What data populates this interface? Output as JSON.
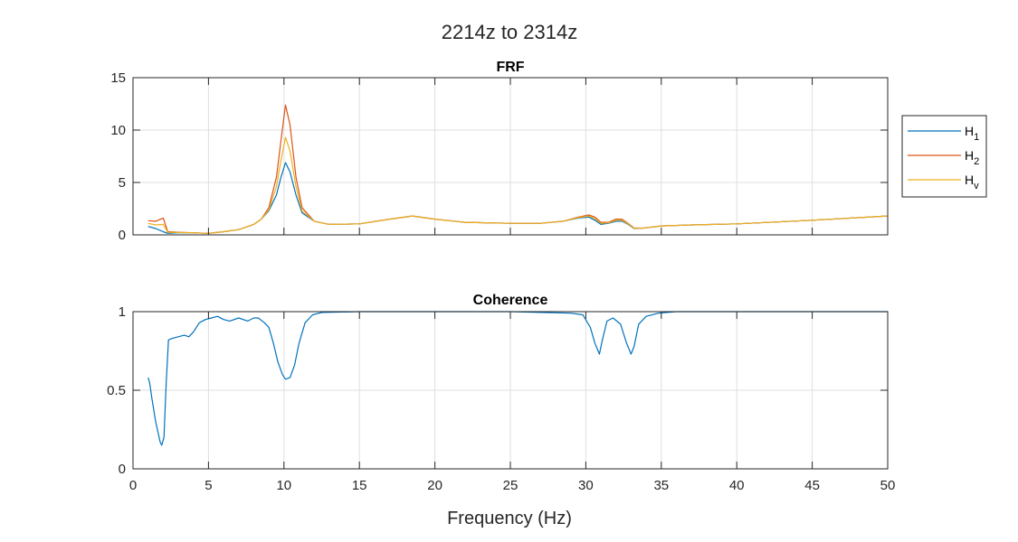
{
  "figure_title": "2214z to 2314z",
  "xlabel": "Frequency (Hz)",
  "colors": {
    "H1": "#0072BD",
    "H2": "#D95319",
    "Hv": "#EDB120",
    "coherence": "#0072BD",
    "grid": "#dfdfdf",
    "axes": "#262626"
  },
  "chart_data": [
    {
      "type": "line",
      "title": "FRF",
      "xlim": [
        0,
        50
      ],
      "ylim": [
        0,
        15
      ],
      "xticks": [
        "0",
        "5",
        "10",
        "15",
        "20",
        "25",
        "30",
        "35",
        "40",
        "45",
        "50"
      ],
      "yticks": [
        "0",
        "5",
        "10",
        "15"
      ],
      "grid": true,
      "legend": "outside-right",
      "xticklabels_visible": false,
      "series": [
        {
          "name": "H1",
          "legend_main": "H",
          "legend_sub": "1",
          "color": "#0072BD",
          "x": [
            1.0,
            1.5,
            2.0,
            2.3,
            3.0,
            4.0,
            5.0,
            6.0,
            7.0,
            8.0,
            8.5,
            9.0,
            9.5,
            9.8,
            10.1,
            10.4,
            10.8,
            11.2,
            12.0,
            13.0,
            15.0,
            17.0,
            18.5,
            20.0,
            22.0,
            25.0,
            27.0,
            28.5,
            29.5,
            30.2,
            30.6,
            31.0,
            31.5,
            32.0,
            32.4,
            32.8,
            33.2,
            33.8,
            35.0,
            37.0,
            40.0,
            45.0,
            50.0
          ],
          "y": [
            0.8,
            0.6,
            0.3,
            0.15,
            0.2,
            0.2,
            0.15,
            0.3,
            0.5,
            1.0,
            1.5,
            2.3,
            3.8,
            5.5,
            6.9,
            6.0,
            3.8,
            2.1,
            1.3,
            1.0,
            1.05,
            1.5,
            1.8,
            1.5,
            1.2,
            1.1,
            1.1,
            1.3,
            1.6,
            1.7,
            1.4,
            1.0,
            1.1,
            1.3,
            1.3,
            1.0,
            0.6,
            0.65,
            0.85,
            0.95,
            1.05,
            1.4,
            1.8
          ]
        },
        {
          "name": "H2",
          "legend_main": "H",
          "legend_sub": "2",
          "color": "#D95319",
          "x": [
            1.0,
            1.5,
            2.0,
            2.3,
            3.0,
            4.0,
            5.0,
            6.0,
            7.0,
            8.0,
            8.5,
            9.0,
            9.5,
            9.8,
            10.1,
            10.4,
            10.8,
            11.2,
            12.0,
            13.0,
            15.0,
            17.0,
            18.5,
            20.0,
            22.0,
            25.0,
            27.0,
            28.5,
            29.5,
            30.2,
            30.6,
            31.0,
            31.5,
            32.0,
            32.4,
            32.8,
            33.2,
            33.8,
            35.0,
            37.0,
            40.0,
            45.0,
            50.0
          ],
          "y": [
            1.35,
            1.3,
            1.6,
            0.3,
            0.25,
            0.2,
            0.15,
            0.3,
            0.5,
            1.0,
            1.5,
            2.6,
            5.5,
            9.0,
            12.4,
            10.5,
            5.5,
            2.6,
            1.3,
            1.0,
            1.05,
            1.5,
            1.8,
            1.5,
            1.2,
            1.1,
            1.1,
            1.3,
            1.7,
            1.9,
            1.7,
            1.2,
            1.2,
            1.5,
            1.5,
            1.1,
            0.65,
            0.65,
            0.85,
            0.95,
            1.05,
            1.4,
            1.8
          ]
        },
        {
          "name": "Hv",
          "legend_main": "H",
          "legend_sub": "v",
          "color": "#EDB120",
          "x": [
            1.0,
            1.5,
            2.0,
            2.3,
            3.0,
            4.0,
            5.0,
            6.0,
            7.0,
            8.0,
            8.5,
            9.0,
            9.5,
            9.8,
            10.1,
            10.4,
            10.8,
            11.2,
            12.0,
            13.0,
            15.0,
            17.0,
            18.5,
            20.0,
            22.0,
            25.0,
            27.0,
            28.5,
            29.5,
            30.2,
            30.6,
            31.0,
            31.5,
            32.0,
            32.4,
            32.8,
            33.2,
            33.8,
            35.0,
            37.0,
            40.0,
            45.0,
            50.0
          ],
          "y": [
            1.1,
            0.95,
            1.0,
            0.25,
            0.22,
            0.2,
            0.15,
            0.3,
            0.5,
            1.0,
            1.5,
            2.4,
            4.6,
            7.1,
            9.3,
            8.0,
            4.6,
            2.3,
            1.3,
            1.0,
            1.05,
            1.5,
            1.8,
            1.5,
            1.2,
            1.1,
            1.1,
            1.3,
            1.65,
            1.8,
            1.55,
            1.1,
            1.15,
            1.4,
            1.4,
            1.05,
            0.62,
            0.65,
            0.85,
            0.95,
            1.05,
            1.4,
            1.8
          ]
        }
      ]
    },
    {
      "type": "line",
      "title": "Coherence",
      "xlim": [
        0,
        50
      ],
      "ylim": [
        0,
        1
      ],
      "xticks": [
        "0",
        "5",
        "10",
        "15",
        "20",
        "25",
        "30",
        "35",
        "40",
        "45",
        "50"
      ],
      "yticks": [
        "0",
        "0.5",
        "1"
      ],
      "grid": true,
      "series": [
        {
          "color": "#0072BD",
          "x": [
            1.0,
            1.1,
            1.25,
            1.5,
            1.8,
            1.9,
            2.05,
            2.2,
            2.35,
            2.6,
            3.0,
            3.4,
            3.7,
            4.0,
            4.4,
            4.8,
            5.2,
            5.6,
            6.0,
            6.4,
            7.0,
            7.6,
            8.0,
            8.3,
            8.7,
            9.0,
            9.3,
            9.6,
            9.9,
            10.1,
            10.4,
            10.7,
            11.0,
            11.4,
            11.9,
            12.5,
            15.0,
            20.0,
            25.0,
            29.0,
            29.8,
            30.3,
            30.6,
            30.9,
            31.1,
            31.4,
            31.8,
            32.3,
            32.7,
            33.0,
            33.2,
            33.5,
            34.0,
            34.8,
            36.0,
            40.0,
            45.0,
            50.0
          ],
          "y": [
            0.58,
            0.55,
            0.45,
            0.3,
            0.17,
            0.15,
            0.2,
            0.55,
            0.82,
            0.83,
            0.84,
            0.85,
            0.84,
            0.87,
            0.93,
            0.95,
            0.96,
            0.97,
            0.95,
            0.94,
            0.96,
            0.94,
            0.96,
            0.96,
            0.93,
            0.9,
            0.8,
            0.68,
            0.6,
            0.57,
            0.58,
            0.66,
            0.8,
            0.93,
            0.98,
            0.995,
            1.0,
            1.0,
            1.0,
            0.99,
            0.98,
            0.9,
            0.8,
            0.73,
            0.82,
            0.94,
            0.96,
            0.92,
            0.8,
            0.73,
            0.78,
            0.92,
            0.97,
            0.99,
            1.0,
            1.0,
            1.0,
            1.0
          ]
        }
      ]
    }
  ]
}
